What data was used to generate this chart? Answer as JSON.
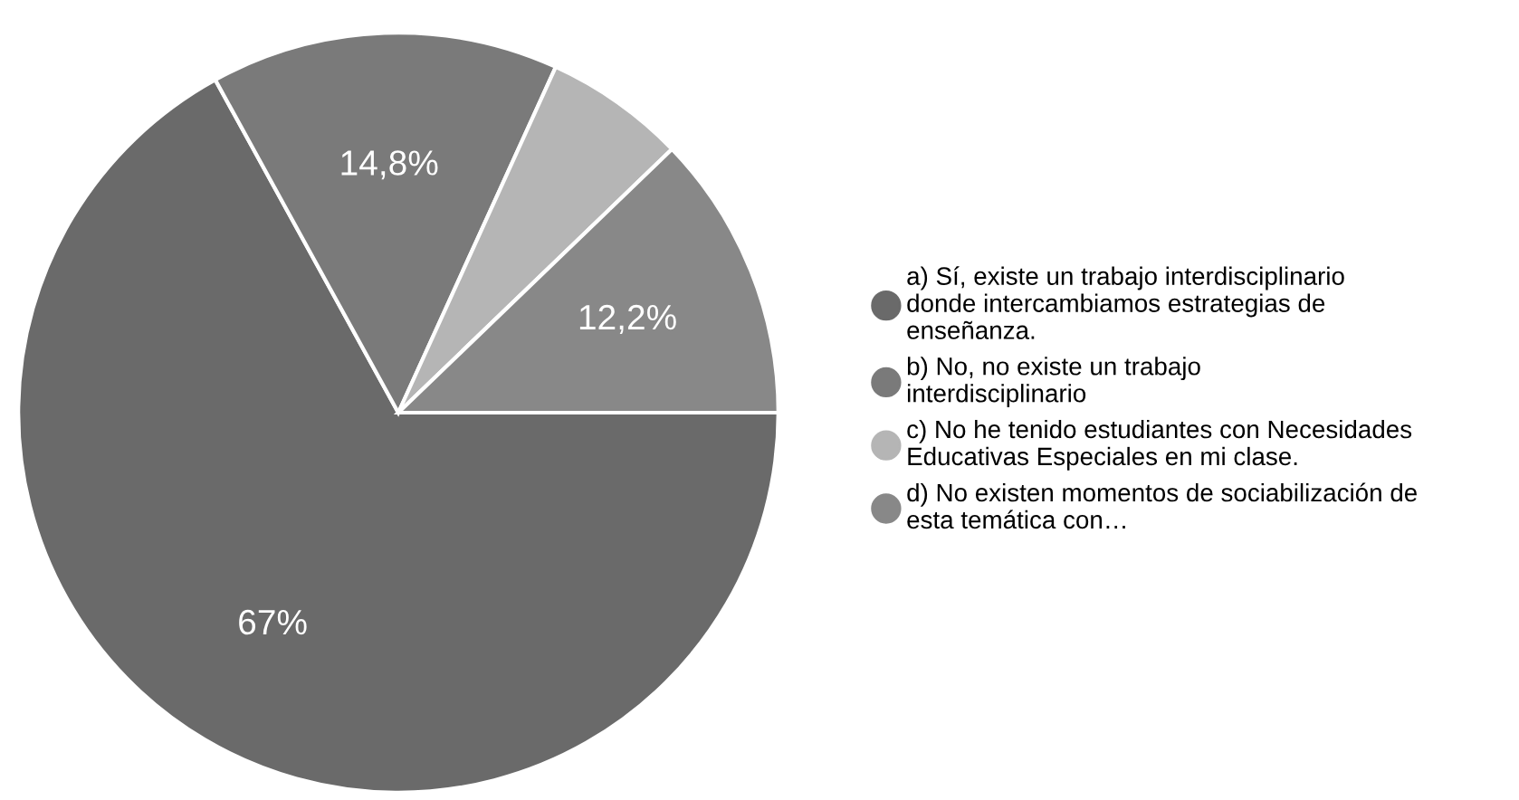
{
  "chart_data": {
    "type": "pie",
    "categories": [
      "a) Sí, existe un trabajo interdisciplinario donde intercambiamos estrategias de enseñanza.",
      "b) No, no existe un trabajo interdisciplinario",
      "c) No he tenido estudiantes con Necesidades Educativas Especiales en mi clase.",
      "d) No existen momentos de sociabilización de esta temática con…"
    ],
    "values": [
      67,
      14.8,
      6,
      12.2
    ],
    "colors": [
      "#6a6a6a",
      "#7a7a7a",
      "#b5b5b5",
      "#888888"
    ],
    "value_labels": [
      "67%",
      "14,8%",
      null,
      "12,2%"
    ],
    "legend": "right"
  }
}
